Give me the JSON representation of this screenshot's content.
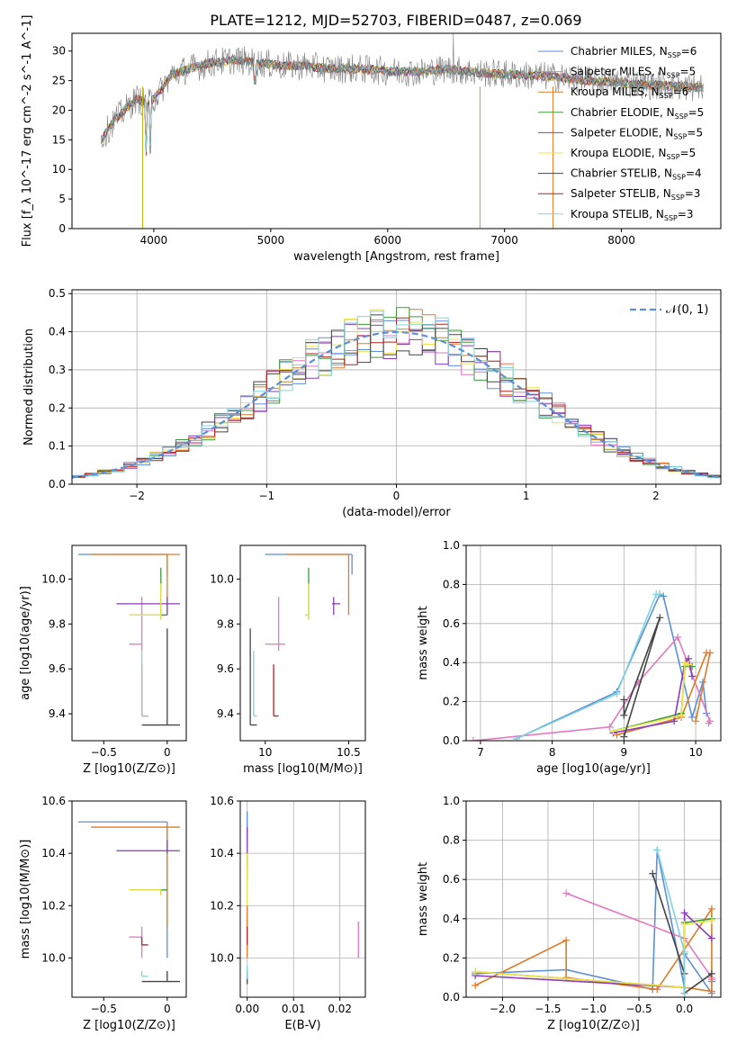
{
  "figure": {
    "title": "PLATE=1212, MJD=52703, FIBERID=0487, z=0.069"
  },
  "colors": [
    "#5b8fd8",
    "#e377c2",
    "#e07b24",
    "#3a9c3a",
    "#8b3bb8",
    "#f0e24a",
    "#444444",
    "#b22222",
    "#7fd3dd"
  ],
  "chart_data": [
    {
      "id": "spectrum",
      "type": "line",
      "xlabel": "wavelength [Angstrom, rest frame]",
      "ylabel": "Flux [f_λ 10^-17 erg cm^-2 s^-1 A^-1]",
      "xlim": [
        3300,
        8850
      ],
      "ylim": [
        0,
        33
      ],
      "xticks": [
        4000,
        5000,
        6000,
        7000,
        8000
      ],
      "yticks": [
        0,
        5,
        10,
        15,
        20,
        25,
        30
      ],
      "grid": false,
      "legend_position": "top-right",
      "legend": [
        {
          "model": "Chabrier MILES",
          "nssp": "6"
        },
        {
          "model": "Salpeter MILES",
          "nssp": "5"
        },
        {
          "model": "Kroupa MILES",
          "nssp": "6"
        },
        {
          "model": "Chabrier ELODIE",
          "nssp": "5"
        },
        {
          "model": "Salpeter ELODIE",
          "nssp": "5"
        },
        {
          "model": "Kroupa ELODIE",
          "nssp": "5"
        },
        {
          "model": "Chabrier STELIB",
          "nssp": "4"
        },
        {
          "model": "Salpeter STELIB",
          "nssp": "3"
        },
        {
          "model": "Kroupa STELIB",
          "nssp": "3"
        }
      ],
      "data_series": {
        "x": [
          3550,
          3650,
          3750,
          3850,
          3950,
          4050,
          4150,
          4300,
          4500,
          4700,
          4900,
          5100,
          5300,
          5500,
          5700,
          5900,
          6100,
          6300,
          6500,
          6700,
          6900,
          7100,
          7300,
          7500,
          7700,
          7900,
          8100,
          8300,
          8500,
          8700
        ],
        "y": [
          15,
          18,
          20,
          22,
          21,
          23,
          26,
          27,
          28,
          28.5,
          28,
          27.5,
          27.5,
          27,
          27,
          26.8,
          26.5,
          26.5,
          27,
          26.5,
          26.2,
          26,
          25.8,
          25.5,
          25,
          24.8,
          24.5,
          24.2,
          24,
          23.8
        ]
      }
    },
    {
      "id": "residuals",
      "type": "line",
      "xlabel": "(data-model)/error",
      "ylabel": "Normed distribution",
      "xlim": [
        -2.5,
        2.5
      ],
      "ylim": [
        0,
        0.51
      ],
      "xticks": [
        -2,
        -1,
        0,
        1,
        2
      ],
      "yticks": [
        0.0,
        0.1,
        0.2,
        0.3,
        0.4,
        0.5
      ],
      "grid": true,
      "legend_position": "top-right",
      "legend_label": "𝒩(0, 1)",
      "histogram_bins": 50
    },
    {
      "id": "age_vs_Z",
      "type": "scatter",
      "xlabel": "Z [log10(Z/Z⊙)]",
      "ylabel": "age [log10(age/yr)]",
      "xlim": [
        -0.75,
        0.15
      ],
      "ylim": [
        9.28,
        10.15
      ],
      "xticks": [
        -0.5,
        0.0
      ],
      "yticks": [
        9.4,
        9.6,
        9.8,
        10.0
      ]
    },
    {
      "id": "age_vs_mass",
      "type": "scatter",
      "xlabel": "mass [log10(M/M⊙)]",
      "xlim": [
        9.85,
        10.6
      ],
      "ylim": [
        9.28,
        10.15
      ],
      "xticks": [
        10.0,
        10.5
      ],
      "yticks": [
        9.4,
        9.6,
        9.8,
        10.0
      ]
    },
    {
      "id": "weight_vs_age",
      "type": "line",
      "xlabel": "age [log10(age/yr)]",
      "ylabel": "mass weight",
      "xlim": [
        6.8,
        10.35
      ],
      "ylim": [
        0,
        1.0
      ],
      "xticks": [
        7,
        8,
        9,
        10
      ],
      "yticks": [
        0.0,
        0.2,
        0.4,
        0.6,
        0.8,
        1.0
      ],
      "grid": true
    },
    {
      "id": "mass_vs_Z",
      "type": "scatter",
      "xlabel": "Z [log10(Z/Z⊙)]",
      "ylabel": "mass [log10(M/M⊙)]",
      "xlim": [
        -0.75,
        0.15
      ],
      "ylim": [
        9.85,
        10.6
      ],
      "xticks": [
        -0.5,
        0.0
      ],
      "yticks": [
        10.0,
        10.2,
        10.4,
        10.6
      ]
    },
    {
      "id": "mass_vs_ebv",
      "type": "scatter",
      "xlabel": "E(B-V)",
      "xlim": [
        -0.0015,
        0.0255
      ],
      "ylim": [
        9.85,
        10.6
      ],
      "xticks": [
        0.0,
        0.01,
        0.02
      ],
      "yticks": [
        10.0,
        10.2,
        10.4,
        10.6
      ],
      "grid": true
    },
    {
      "id": "weight_vs_Z",
      "type": "line",
      "xlabel": "Z [log10(Z/Z⊙)]",
      "ylabel": "mass weight",
      "xlim": [
        -2.4,
        0.4
      ],
      "ylim": [
        0,
        1.0
      ],
      "xticks": [
        -2.0,
        -1.5,
        -1.0,
        -0.5,
        0.0
      ],
      "yticks": [
        0.0,
        0.2,
        0.4,
        0.6,
        0.8,
        1.0
      ],
      "grid": true
    }
  ],
  "models": [
    {
      "Z": 0.0,
      "Ze": [
        -0.7,
        0.0
      ],
      "age": 10.11,
      "ae": [
        10.02,
        10.11
      ],
      "mass": 10.52,
      "me": [
        10.0,
        10.52
      ],
      "ebv": 0.0,
      "eb": [
        10.45,
        10.56
      ],
      "sfh": [
        [
          7.5,
          0.01
        ],
        [
          8.9,
          0.25
        ],
        [
          9.5,
          0.75
        ],
        [
          9.55,
          0.74
        ],
        [
          9.95,
          0.12
        ],
        [
          10.1,
          0.3
        ],
        [
          10.15,
          0.14
        ]
      ],
      "zw": [
        [
          -2.3,
          0.12
        ],
        [
          -1.3,
          0.14
        ],
        [
          -0.35,
          0.04
        ],
        [
          -0.3,
          0.75
        ],
        [
          0.0,
          0.05
        ],
        [
          0.0,
          0.22
        ],
        [
          0.3,
          0.02
        ],
        [
          0.3,
          0.08
        ]
      ]
    },
    {
      "Z": -0.2,
      "Ze": [
        -0.3,
        -0.2
      ],
      "age": 9.71,
      "ae": [
        9.68,
        9.92
      ],
      "mass": 10.08,
      "me": [
        10.0,
        10.12
      ],
      "ebv": 0.024,
      "eb": [
        10.0,
        10.14
      ],
      "sfh": [
        [
          6.9,
          0.0
        ],
        [
          8.8,
          0.07
        ],
        [
          9.2,
          0.3
        ],
        [
          9.75,
          0.53
        ],
        [
          10.2,
          0.1
        ],
        [
          10.18,
          0.09
        ]
      ],
      "zw": [
        [
          -1.3,
          0.53
        ],
        [
          0.0,
          0.3
        ],
        [
          0.3,
          0.1
        ],
        [
          0.3,
          0.09
        ]
      ]
    },
    {
      "Z": 0.0,
      "Ze": [
        -0.6,
        0.1
      ],
      "age": 10.11,
      "ae": [
        9.84,
        10.11
      ],
      "mass": 10.5,
      "me": [
        10.12,
        10.5
      ],
      "ebv": 0.0,
      "eb": [
        10.0,
        10.2
      ],
      "sfh": [
        [
          8.9,
          0.03
        ],
        [
          9.8,
          0.12
        ],
        [
          10.15,
          0.45
        ],
        [
          10.2,
          0.45
        ],
        [
          10.0,
          0.1
        ]
      ],
      "zw": [
        [
          -2.3,
          0.06
        ],
        [
          -1.3,
          0.29
        ],
        [
          -1.3,
          0.1
        ],
        [
          -0.3,
          0.04
        ],
        [
          0.3,
          0.45
        ],
        [
          0.3,
          0.03
        ],
        [
          0.0,
          0.05
        ]
      ]
    },
    {
      "Z": -0.05,
      "Ze": [
        -0.3,
        0.0
      ],
      "age": 9.84,
      "ae": [
        9.82,
        10.05
      ],
      "mass": 10.26,
      "me": [
        10.24,
        10.26
      ],
      "ebv": 0.0,
      "eb": [
        10.3,
        10.4
      ],
      "sfh": [
        [
          8.85,
          0.05
        ],
        [
          9.8,
          0.14
        ],
        [
          9.85,
          0.38
        ],
        [
          9.95,
          0.38
        ]
      ],
      "zw": [
        [
          -2.3,
          0.13
        ],
        [
          0.0,
          0.05
        ],
        [
          0.0,
          0.38
        ],
        [
          0.3,
          0.4
        ]
      ]
    },
    {
      "Z": 0.0,
      "Ze": [
        -0.4,
        0.1
      ],
      "age": 9.89,
      "ae": [
        9.84,
        9.92
      ],
      "mass": 10.41,
      "me": [
        10.4,
        10.45
      ],
      "ebv": 0.0,
      "eb": [
        10.35,
        10.5
      ],
      "sfh": [
        [
          8.85,
          0.04
        ],
        [
          9.7,
          0.1
        ],
        [
          9.85,
          0.4
        ],
        [
          9.9,
          0.42
        ],
        [
          9.95,
          0.33
        ]
      ],
      "zw": [
        [
          -2.3,
          0.11
        ],
        [
          0.0,
          0.05
        ],
        [
          0.0,
          0.43
        ],
        [
          0.3,
          0.3
        ]
      ]
    },
    {
      "Z": -0.05,
      "Ze": [
        -0.3,
        -0.05
      ],
      "age": 9.84,
      "ae": [
        9.82,
        9.98
      ],
      "mass": 10.26,
      "me": [
        10.24,
        10.26
      ],
      "ebv": 0.0,
      "eb": [
        10.2,
        10.4
      ],
      "sfh": [
        [
          8.85,
          0.05
        ],
        [
          9.8,
          0.13
        ],
        [
          9.85,
          0.4
        ],
        [
          9.9,
          0.39
        ]
      ],
      "zw": [
        [
          -2.3,
          0.13
        ],
        [
          0.0,
          0.05
        ],
        [
          0.0,
          0.37
        ],
        [
          0.3,
          0.39
        ]
      ]
    },
    {
      "Z": 0.0,
      "Ze": [
        -0.2,
        0.1
      ],
      "age": 9.35,
      "ae": [
        9.35,
        9.78
      ],
      "mass": 9.91,
      "me": [
        9.91,
        9.95
      ],
      "ebv": 0.0,
      "eb": [
        9.9,
        9.95
      ],
      "sfh": [
        [
          9.0,
          0.21
        ],
        [
          9.0,
          0.13
        ],
        [
          9.5,
          0.63
        ],
        [
          9.0,
          0.02
        ]
      ],
      "zw": [
        [
          -0.35,
          0.63
        ],
        [
          0.0,
          0.12
        ],
        [
          0.0,
          0.02
        ],
        [
          0.3,
          0.12
        ]
      ]
    },
    {
      "Z": -0.2,
      "Ze": [
        -0.2,
        -0.15
      ],
      "age": 9.39,
      "ae": [
        9.39,
        9.62
      ],
      "mass": 10.05,
      "me": [
        10.05,
        10.08
      ],
      "ebv": 0.0,
      "eb": [
        10.05,
        10.12
      ],
      "sfh": [],
      "zw": []
    },
    {
      "Z": -0.2,
      "Ze": [
        -0.2,
        -0.15
      ],
      "age": 9.39,
      "ae": [
        9.39,
        9.68
      ],
      "mass": 9.93,
      "me": [
        9.93,
        9.95
      ],
      "ebv": 0.0,
      "eb": [
        9.92,
        9.97
      ],
      "sfh": [
        [
          7.5,
          0.01
        ],
        [
          8.9,
          0.24
        ],
        [
          9.45,
          0.75
        ],
        [
          9.5,
          0.75
        ]
      ],
      "zw": [
        [
          -0.3,
          0.75
        ],
        [
          0.0,
          0.23
        ],
        [
          0.0,
          0.02
        ]
      ]
    }
  ]
}
